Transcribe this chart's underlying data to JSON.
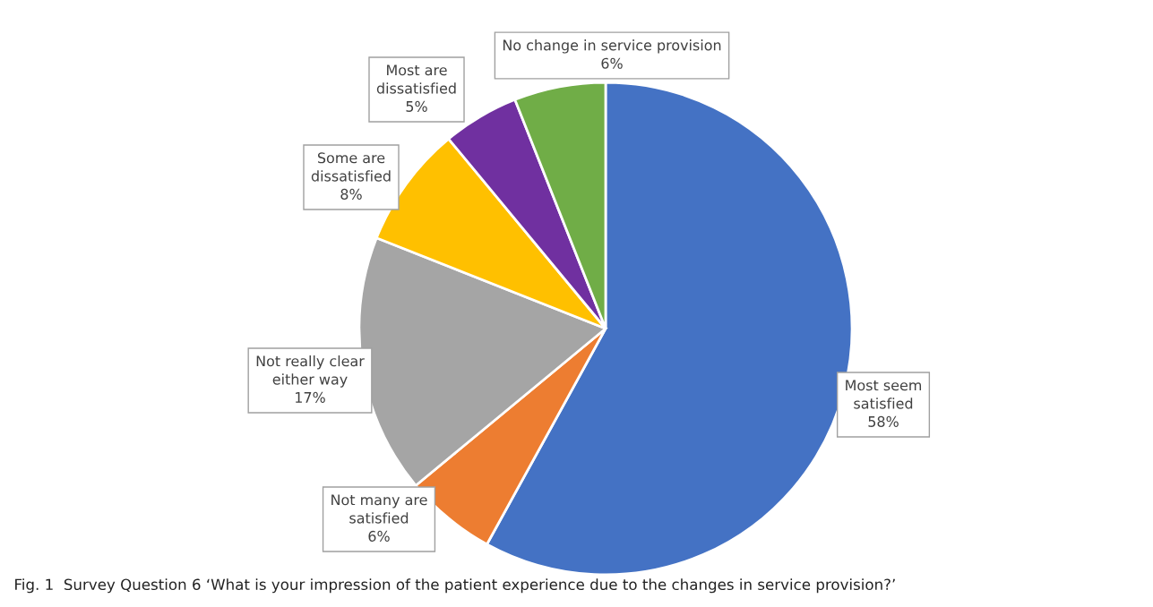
{
  "chart_data": {
    "type": "pie",
    "categories": [
      "Most seem\nsatisfied",
      "Not many are\nsatisfied",
      "Not really clear\neither way",
      "Some are\ndissatisfied",
      "Most are\ndissatisfied",
      "No change in service provision"
    ],
    "values": [
      58,
      6,
      17,
      8,
      5,
      6
    ],
    "colors": [
      "#4472c4",
      "#ed7d31",
      "#a5a5a5",
      "#ffc000",
      "#7030a0",
      "#70ad47"
    ],
    "value_labels": [
      "58%",
      "6%",
      "17%",
      "8%",
      "5%",
      "6%"
    ],
    "annotations": [
      "Fig. 1  Survey Question 6 ‘What is your impression of the patient experience due to the changes in service provision?’"
    ]
  }
}
